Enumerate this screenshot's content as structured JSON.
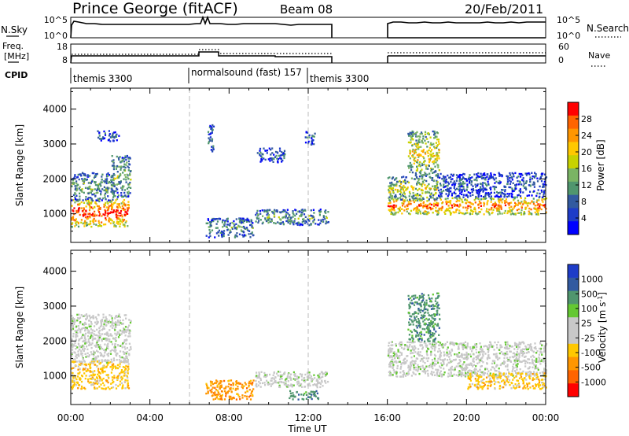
{
  "header": {
    "title": "Prince George (fitACF)",
    "beam": "Beam 08",
    "date": "20/Feb/2011"
  },
  "params": {
    "nsky_label": "N.Sky",
    "nsky_ticks": [
      "10^5",
      "10^0"
    ],
    "nsearch_label": "N.Search",
    "nsearch_ticks": [
      "10^5",
      "10^0"
    ],
    "freq_label_1": "Freq.",
    "freq_label_2": "[MHz]",
    "freq_ticks": [
      "18",
      "8"
    ],
    "nave_label": "Nave",
    "nave_ticks": [
      "60",
      "0"
    ],
    "cpid_label": "CPID",
    "cpid_segments": [
      "themis 3300",
      "normalsound (fast) 157",
      "themis 3300"
    ]
  },
  "chart_data": [
    {
      "type": "heatmap",
      "name": "power",
      "ylabel": "Slant Range [km]",
      "xlabel": "",
      "x_ticks": [
        "00:00",
        "04:00",
        "08:00",
        "12:00",
        "16:00",
        "20:00",
        "00:00"
      ],
      "y_ticks": [
        "1000",
        "2000",
        "3000",
        "4000"
      ],
      "xlim_hours": [
        0,
        24
      ],
      "ylim_km": [
        180,
        4600
      ],
      "colorbar": {
        "label": "Power [dB]",
        "ticks": [
          "28",
          "24",
          "20",
          "16",
          "12",
          "8",
          "4"
        ],
        "colors": [
          "#ff0000",
          "#ff6400",
          "#ff9600",
          "#ffc800",
          "#c8d200",
          "#7ab464",
          "#50966e",
          "#325aa0",
          "#1e3cc8",
          "#0000ff"
        ]
      },
      "regions": [
        {
          "t0": 0.0,
          "t1": 2.9,
          "r0": 650,
          "r1": 1450,
          "level": 0.85
        },
        {
          "t0": 0.0,
          "t1": 2.2,
          "r0": 1400,
          "r1": 2200,
          "level": 0.35
        },
        {
          "t0": 2.0,
          "t1": 3.0,
          "r0": 1500,
          "r1": 2700,
          "level": 0.4
        },
        {
          "t0": 1.3,
          "t1": 2.4,
          "r0": 3100,
          "r1": 3400,
          "level": 0.2
        },
        {
          "t0": 6.8,
          "t1": 9.2,
          "r0": 350,
          "r1": 900,
          "level": 0.3
        },
        {
          "t0": 6.9,
          "t1": 7.2,
          "r0": 2800,
          "r1": 3600,
          "level": 0.25
        },
        {
          "t0": 9.3,
          "t1": 13.0,
          "r0": 700,
          "r1": 1150,
          "level": 0.35
        },
        {
          "t0": 9.4,
          "t1": 10.8,
          "r0": 2500,
          "r1": 2900,
          "level": 0.2
        },
        {
          "t0": 11.8,
          "t1": 12.3,
          "r0": 3000,
          "r1": 3400,
          "level": 0.2
        },
        {
          "t0": 16.0,
          "t1": 24.0,
          "r0": 1000,
          "r1": 1500,
          "level": 0.75
        },
        {
          "t0": 16.0,
          "t1": 18.5,
          "r0": 1400,
          "r1": 2100,
          "level": 0.5
        },
        {
          "t0": 17.0,
          "t1": 18.6,
          "r0": 2100,
          "r1": 3400,
          "level": 0.55
        },
        {
          "t0": 18.5,
          "t1": 24.0,
          "r0": 1500,
          "r1": 2200,
          "level": 0.2
        }
      ]
    },
    {
      "type": "heatmap",
      "name": "velocity",
      "ylabel": "Slant Range [km]",
      "xlabel": "Time UT",
      "x_ticks": [
        "00:00",
        "04:00",
        "08:00",
        "12:00",
        "16:00",
        "20:00",
        "00:00"
      ],
      "y_ticks": [
        "1000",
        "2000",
        "3000",
        "4000"
      ],
      "xlim_hours": [
        0,
        24
      ],
      "ylim_km": [
        180,
        4600
      ],
      "colorbar": {
        "label": "Velocity [m s^-1]",
        "ticks": [
          "1000",
          "500",
          "100",
          "25",
          "-25",
          "-100",
          "-500",
          "-1000"
        ],
        "colors": [
          "#1e3cc8",
          "#325aa0",
          "#50966e",
          "#64c832",
          "#c8c8c8",
          "#c8c8c8",
          "#ffc800",
          "#ff9600",
          "#ff6400",
          "#ff0000"
        ]
      },
      "regions": [
        {
          "t0": 0.0,
          "t1": 2.9,
          "r0": 650,
          "r1": 1450,
          "v": "-200"
        },
        {
          "t0": 0.0,
          "t1": 3.0,
          "r0": 1400,
          "r1": 2800,
          "v": "0"
        },
        {
          "t0": 6.8,
          "t1": 9.2,
          "r0": 350,
          "r1": 900,
          "v": "-300"
        },
        {
          "t0": 9.3,
          "t1": 13.0,
          "r0": 700,
          "r1": 1150,
          "v": "0"
        },
        {
          "t0": 11.0,
          "t1": 12.5,
          "r0": 350,
          "r1": 600,
          "v": "150"
        },
        {
          "t0": 16.0,
          "t1": 24.0,
          "r0": 1000,
          "r1": 2000,
          "v": "0"
        },
        {
          "t0": 17.0,
          "t1": 18.6,
          "r0": 2000,
          "r1": 3400,
          "v": "200"
        },
        {
          "t0": 20.0,
          "t1": 24.0,
          "r0": 650,
          "r1": 1100,
          "v": "-150"
        }
      ]
    }
  ]
}
